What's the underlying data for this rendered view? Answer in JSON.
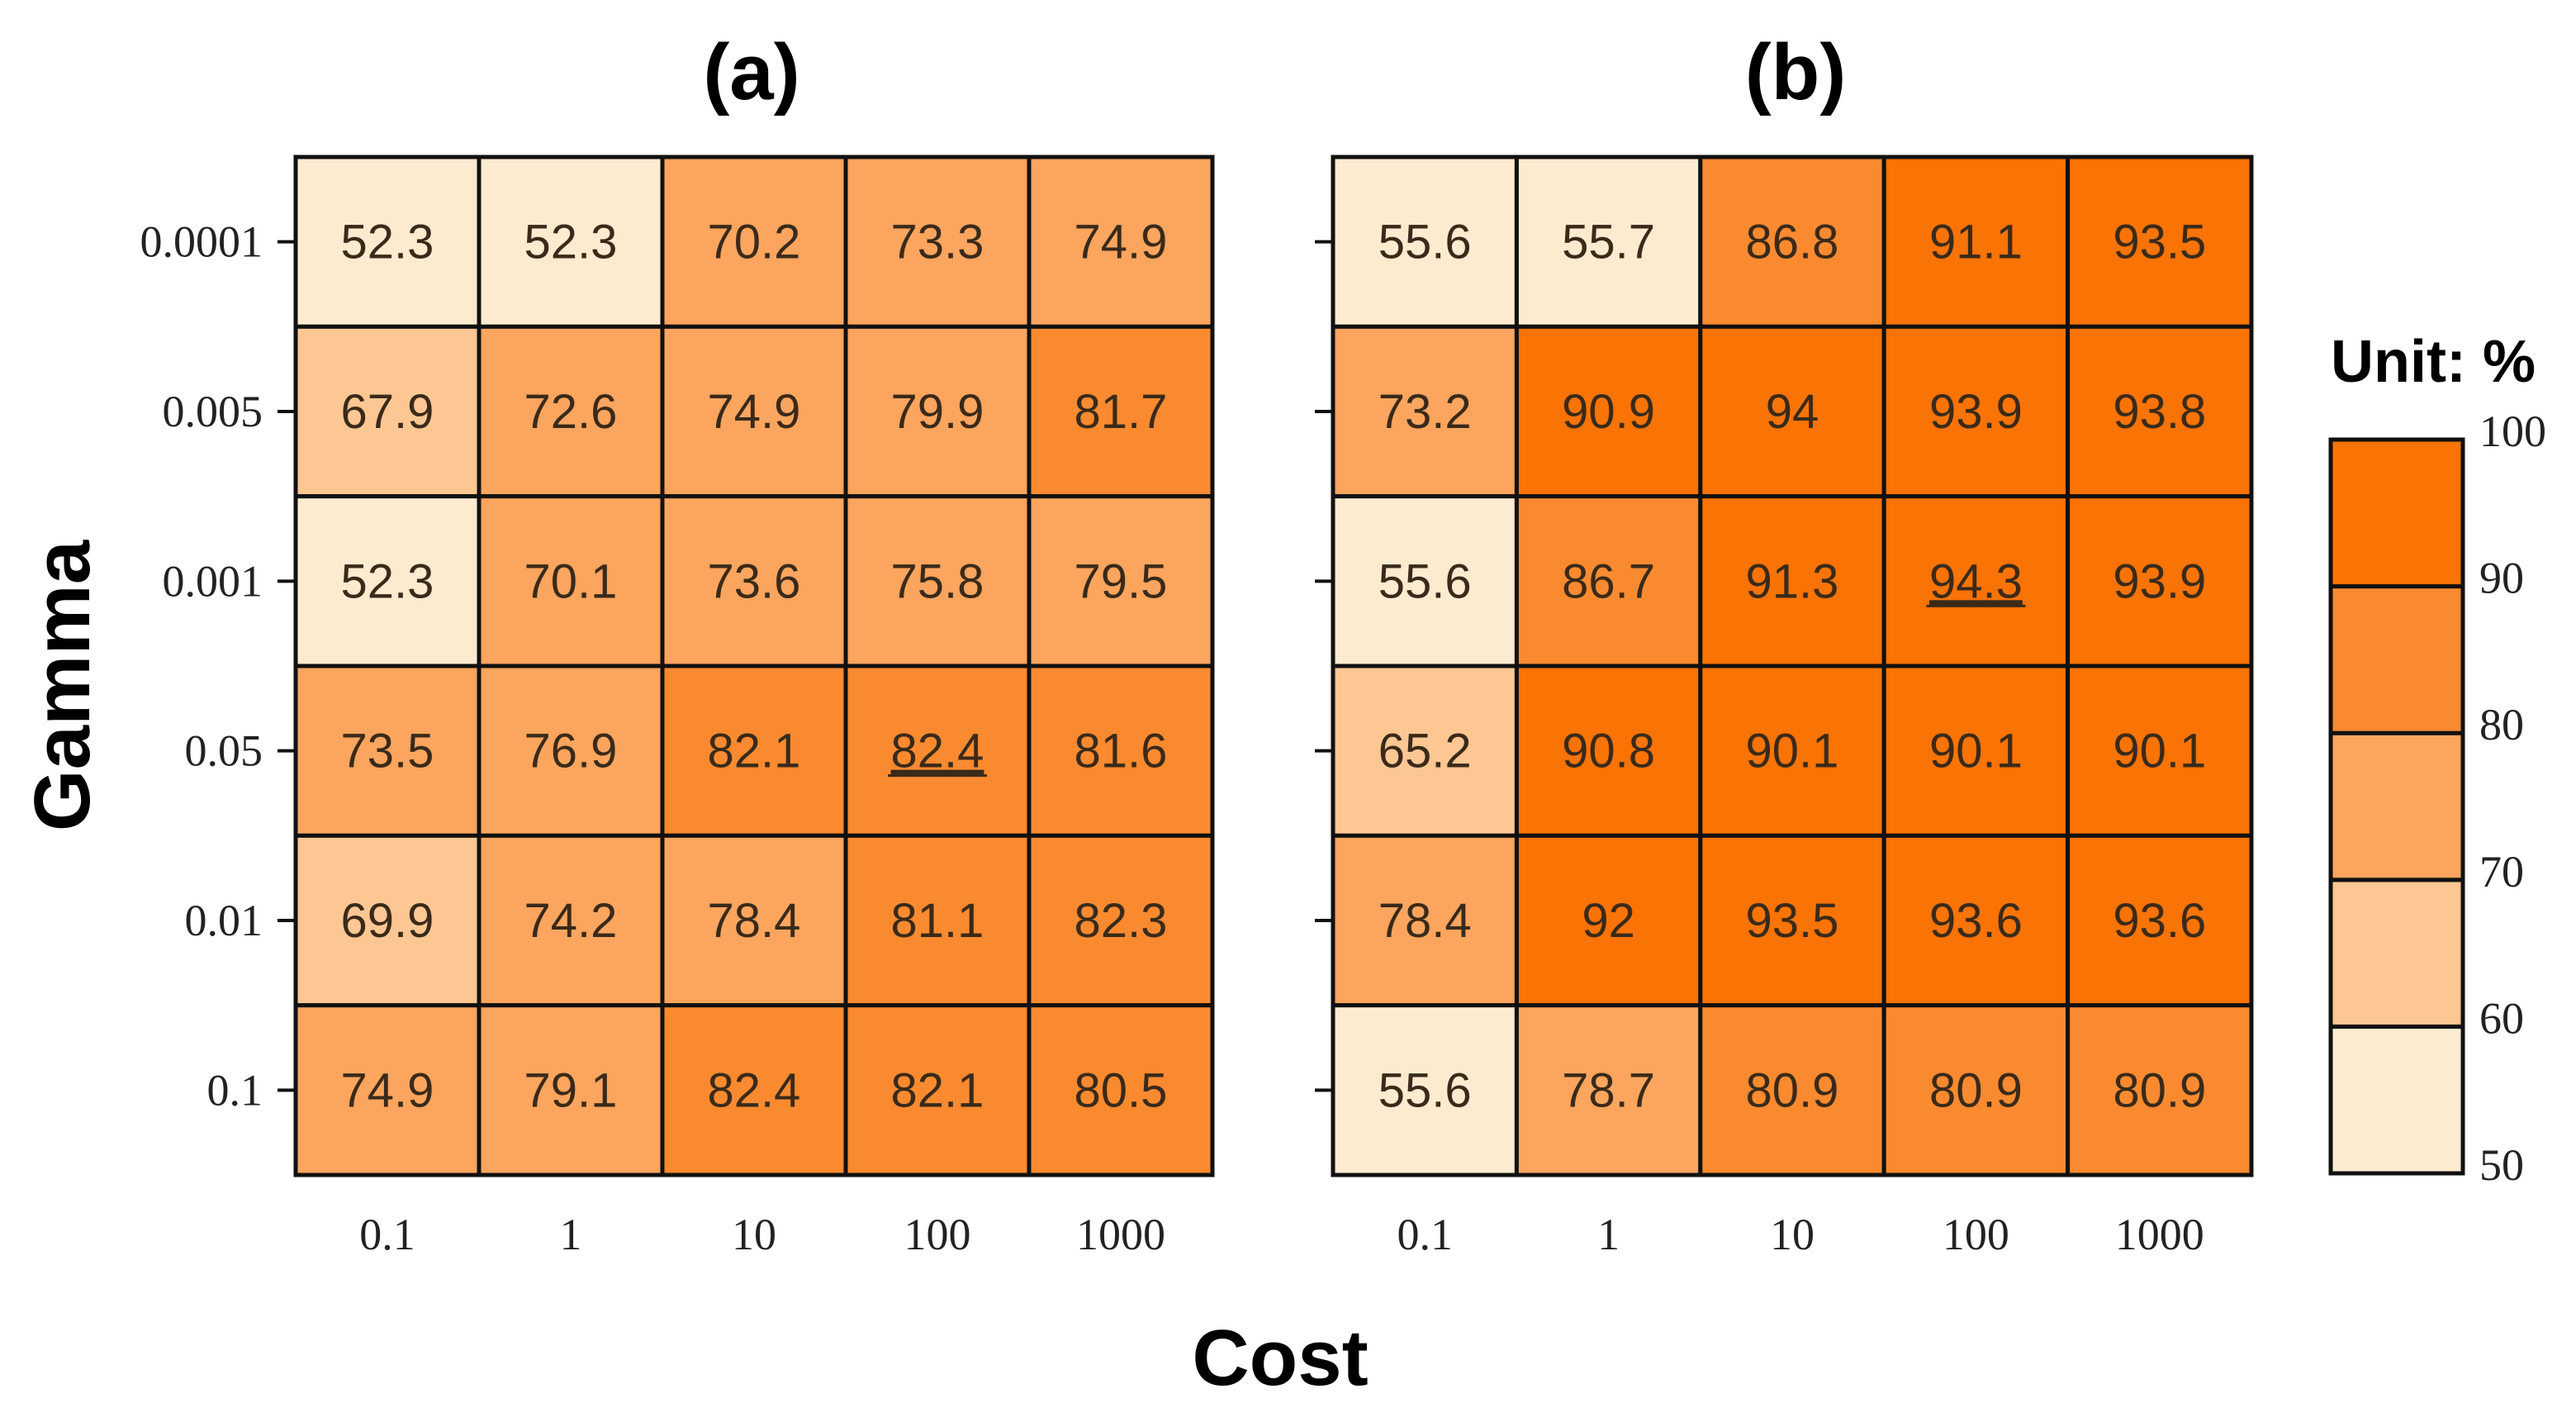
{
  "chart_data": [
    {
      "type": "heatmap",
      "title": "(a)",
      "xlabel": "Cost",
      "ylabel": "Gamma",
      "x_categories": [
        "0.1",
        "1",
        "10",
        "100",
        "1000"
      ],
      "y_categories": [
        "0.0001",
        "0.005",
        "0.001",
        "0.05",
        "0.01",
        "0.1"
      ],
      "values": [
        [
          52.3,
          52.3,
          70.2,
          73.3,
          74.9
        ],
        [
          67.9,
          72.6,
          74.9,
          79.9,
          81.7
        ],
        [
          52.3,
          70.1,
          73.6,
          75.8,
          79.5
        ],
        [
          73.5,
          76.9,
          82.1,
          82.4,
          81.6
        ],
        [
          69.9,
          74.2,
          78.4,
          81.1,
          82.3
        ],
        [
          74.9,
          79.1,
          82.4,
          82.1,
          80.5
        ]
      ],
      "labels": [
        [
          "52.3",
          "52.3",
          "70.2",
          "73.3",
          "74.9"
        ],
        [
          "67.9",
          "72.6",
          "74.9",
          "79.9",
          "81.7"
        ],
        [
          "52.3",
          "70.1",
          "73.6",
          "75.8",
          "79.5"
        ],
        [
          "73.5",
          "76.9",
          "82.1",
          "82.4",
          "81.6"
        ],
        [
          "69.9",
          "74.2",
          "78.4",
          "81.1",
          "82.3"
        ],
        [
          "74.9",
          "79.1",
          "82.4",
          "82.1",
          "80.5"
        ]
      ],
      "highlight": {
        "row": 3,
        "col": 3
      },
      "y_ticks_visible": true
    },
    {
      "type": "heatmap",
      "title": "(b)",
      "xlabel": "Cost",
      "ylabel": "Gamma",
      "x_categories": [
        "0.1",
        "1",
        "10",
        "100",
        "1000"
      ],
      "y_categories": [
        "0.0001",
        "0.005",
        "0.001",
        "0.05",
        "0.01",
        "0.1"
      ],
      "values": [
        [
          55.6,
          55.7,
          86.8,
          91.1,
          93.5
        ],
        [
          73.2,
          90.9,
          94,
          93.9,
          93.8
        ],
        [
          55.6,
          86.7,
          91.3,
          94.3,
          93.9
        ],
        [
          65.2,
          90.8,
          90.1,
          90.1,
          90.1
        ],
        [
          78.4,
          92,
          93.5,
          93.6,
          93.6
        ],
        [
          55.6,
          78.7,
          80.9,
          80.9,
          80.9
        ]
      ],
      "labels": [
        [
          "55.6",
          "55.7",
          "86.8",
          "91.1",
          "93.5"
        ],
        [
          "73.2",
          "90.9",
          "94",
          "93.9",
          "93.8"
        ],
        [
          "55.6",
          "86.7",
          "91.3",
          "94.3",
          "93.9"
        ],
        [
          "65.2",
          "90.8",
          "90.1",
          "90.1",
          "90.1"
        ],
        [
          "78.4",
          "92",
          "93.5",
          "93.6",
          "93.6"
        ],
        [
          "55.6",
          "78.7",
          "80.9",
          "80.9",
          "80.9"
        ]
      ],
      "highlight": {
        "row": 2,
        "col": 3
      },
      "y_ticks_visible": false
    }
  ],
  "axes": {
    "x_title": "Cost",
    "y_title": "Gamma"
  },
  "colorbar": {
    "title": "Unit: %",
    "bins": [
      {
        "min": 50,
        "max": 60,
        "color": "#fdebd0"
      },
      {
        "min": 60,
        "max": 70,
        "color": "#fdc793"
      },
      {
        "min": 70,
        "max": 80,
        "color": "#fba55e"
      },
      {
        "min": 80,
        "max": 90,
        "color": "#f98a30"
      },
      {
        "min": 90,
        "max": 100,
        "color": "#f97305"
      }
    ],
    "ticks": [
      "50",
      "60",
      "70",
      "80",
      "90",
      "100"
    ]
  }
}
